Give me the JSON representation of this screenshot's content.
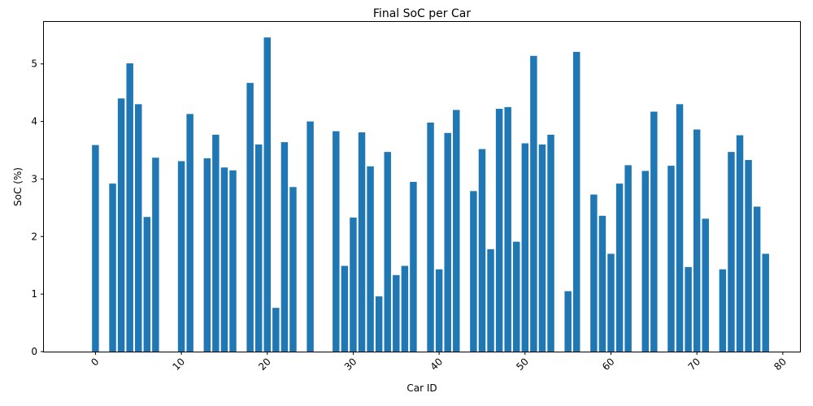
{
  "chart_data": {
    "type": "bar",
    "title": "Final SoC per Car",
    "xlabel": "Car ID",
    "ylabel": "SoC (%)",
    "xlim": [
      -6,
      82
    ],
    "ylim": [
      0,
      5.73
    ],
    "xticks": [
      0,
      10,
      20,
      30,
      40,
      50,
      60,
      70,
      80
    ],
    "xtick_labels": [
      "0",
      "10",
      "20",
      "30",
      "40",
      "50",
      "60",
      "70",
      "80"
    ],
    "yticks": [
      0,
      1,
      2,
      3,
      4,
      5
    ],
    "ytick_labels": [
      "0",
      "1",
      "2",
      "3",
      "4",
      "5"
    ],
    "xtick_rotation": 45,
    "grid": false,
    "bar_color": "#1f77b4",
    "x": [
      0,
      2,
      3,
      4,
      5,
      6,
      7,
      10,
      11,
      13,
      14,
      15,
      16,
      18,
      19,
      20,
      21,
      22,
      23,
      25,
      28,
      29,
      30,
      31,
      32,
      33,
      34,
      35,
      36,
      37,
      39,
      40,
      41,
      42,
      44,
      45,
      46,
      47,
      48,
      49,
      50,
      51,
      52,
      53,
      55,
      56,
      58,
      59,
      60,
      61,
      62,
      64,
      65,
      67,
      68,
      69,
      70,
      71,
      73,
      74,
      75,
      76,
      77,
      78
    ],
    "values": [
      3.59,
      2.92,
      4.4,
      5.01,
      4.3,
      2.34,
      3.37,
      3.31,
      4.13,
      3.36,
      3.77,
      3.2,
      3.15,
      4.67,
      3.6,
      5.46,
      0.76,
      3.64,
      2.86,
      4.0,
      3.83,
      1.49,
      2.33,
      3.81,
      3.22,
      0.96,
      3.47,
      1.33,
      1.49,
      2.95,
      3.98,
      1.43,
      3.8,
      4.2,
      2.79,
      3.52,
      1.78,
      4.22,
      4.25,
      1.91,
      3.62,
      5.14,
      3.6,
      3.77,
      1.05,
      5.21,
      2.73,
      2.36,
      1.7,
      2.92,
      3.24,
      3.14,
      4.17,
      3.23,
      4.3,
      1.47,
      3.86,
      2.31,
      1.43,
      3.47,
      3.76,
      3.33,
      2.52,
      1.7
    ]
  }
}
